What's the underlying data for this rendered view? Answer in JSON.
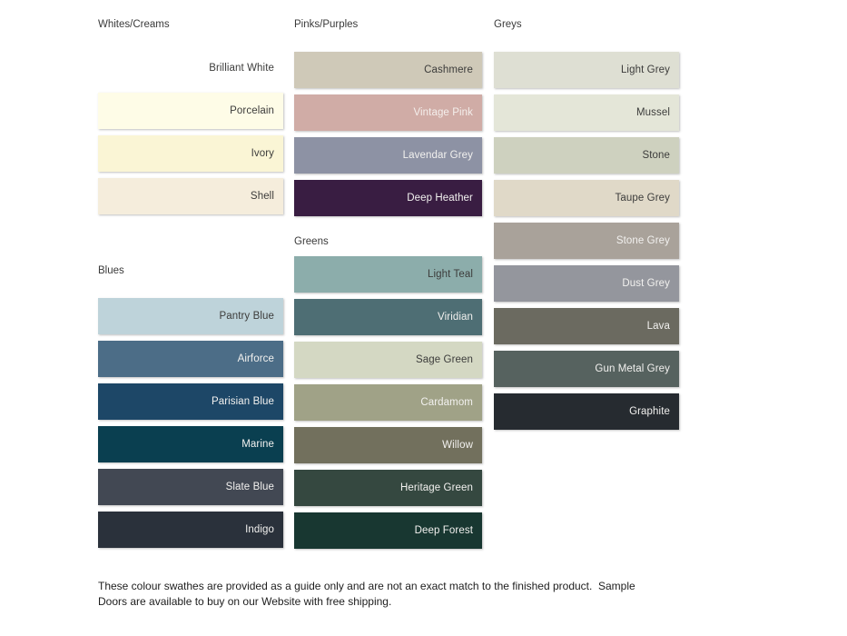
{
  "columns": [
    {
      "sections": [
        {
          "title": "Whites/Creams",
          "swatches": [
            {
              "name": "Brilliant White",
              "color": "#FFFFFF",
              "label_color": "#3c3c3b",
              "flat": true
            },
            {
              "name": "Porcelain",
              "color": "#FEFCE7",
              "label_color": "#3c3c3b"
            },
            {
              "name": "Ivory",
              "color": "#FAF5D5",
              "label_color": "#3c3c3b"
            },
            {
              "name": "Shell",
              "color": "#F5EDDC",
              "label_color": "#3c3c3b"
            }
          ]
        },
        {
          "title": "Blues",
          "swatches": [
            {
              "name": "Pantry Blue",
              "color": "#BED3DA",
              "label_color": "#3c3c3b"
            },
            {
              "name": "Airforce",
              "color": "#4C6D87",
              "label_color": "#F2F1EF"
            },
            {
              "name": "Parisian Blue",
              "color": "#1D4767",
              "label_color": "#F2F1EF"
            },
            {
              "name": "Marine",
              "color": "#0A3F50",
              "label_color": "#F2F1EF"
            },
            {
              "name": "Slate Blue",
              "color": "#424853",
              "label_color": "#F2F1EF"
            },
            {
              "name": "Indigo",
              "color": "#2A313B",
              "label_color": "#F2F1EF"
            }
          ]
        }
      ]
    },
    {
      "sections": [
        {
          "title": "Pinks/Purples",
          "swatches": [
            {
              "name": "Cashmere",
              "color": "#CFC9B8",
              "label_color": "#3c3c3b"
            },
            {
              "name": "Vintage Pink",
              "color": "#D0ACA6",
              "label_color": "#F4EFEC"
            },
            {
              "name": "Lavendar Grey",
              "color": "#8D92A4",
              "label_color": "#F2F1EF"
            },
            {
              "name": "Deep Heather",
              "color": "#391D42",
              "label_color": "#F2F1EF"
            }
          ]
        },
        {
          "title": "Greens",
          "swatches": [
            {
              "name": "Light Teal",
              "color": "#8CADAB",
              "label_color": "#3c3c3b"
            },
            {
              "name": "Viridian",
              "color": "#4E6E74",
              "label_color": "#F2F1EF"
            },
            {
              "name": "Sage Green",
              "color": "#D4D8C3",
              "label_color": "#3c3c3b"
            },
            {
              "name": "Cardamom",
              "color": "#A0A287",
              "label_color": "#F2F1EF"
            },
            {
              "name": "Willow",
              "color": "#72705D",
              "label_color": "#F2F1EF"
            },
            {
              "name": "Heritage Green",
              "color": "#354840",
              "label_color": "#F2F1EF"
            },
            {
              "name": "Deep Forest",
              "color": "#183731",
              "label_color": "#F2F1EF"
            }
          ]
        }
      ]
    },
    {
      "sections": [
        {
          "title": "Greys",
          "swatches": [
            {
              "name": "Light Grey",
              "color": "#DEDFD3",
              "label_color": "#3c3c3b"
            },
            {
              "name": "Mussel",
              "color": "#E4E6D8",
              "label_color": "#3c3c3b"
            },
            {
              "name": "Stone",
              "color": "#CED1BF",
              "label_color": "#3c3c3b"
            },
            {
              "name": "Taupe Grey",
              "color": "#E0D9C8",
              "label_color": "#3c3c3b"
            },
            {
              "name": "Stone Grey",
              "color": "#A9A29A",
              "label_color": "#F2F1EF"
            },
            {
              "name": "Dust Grey",
              "color": "#94969D",
              "label_color": "#F2F1EF"
            },
            {
              "name": "Lava",
              "color": "#6B6A60",
              "label_color": "#F2F1EF"
            },
            {
              "name": "Gun Metal Grey",
              "color": "#56625F",
              "label_color": "#F2F1EF"
            },
            {
              "name": "Graphite",
              "color": "#262B30",
              "label_color": "#F2F1EF"
            }
          ]
        }
      ]
    }
  ],
  "footer": {
    "line1": "These colour swathes are provided as a guide only and are not an exact match to the finished product.  Sample",
    "line2": "Doors are available to buy on our Website with free shipping."
  }
}
